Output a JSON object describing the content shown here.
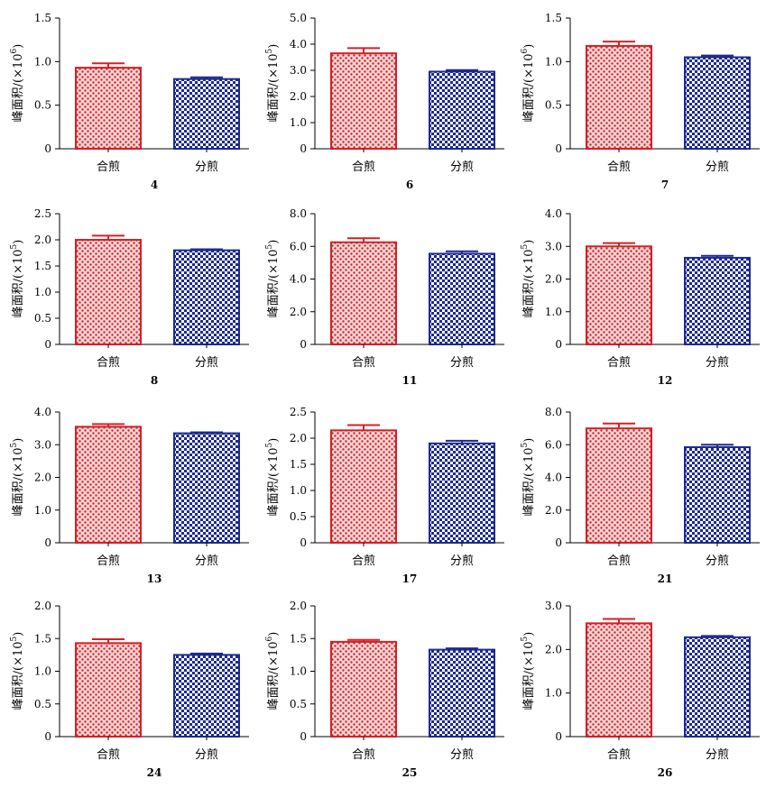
{
  "pattern_colors": {
    "combined": "#d42026",
    "separate": "#1c2a8e"
  },
  "ylabel_prefix": "峰面积/(×10",
  "ylabel_suffix": ")",
  "chart_data": [
    {
      "type": "bar",
      "compound": "4",
      "exponent": "6",
      "categories": [
        "合煎",
        "分煎"
      ],
      "values": [
        0.93,
        0.8
      ],
      "errors": [
        0.05,
        0.02
      ],
      "ylim": [
        0,
        1.5
      ],
      "yticks": [
        "0",
        "0.5",
        "1.0",
        "1.5"
      ]
    },
    {
      "type": "bar",
      "compound": "6",
      "exponent": "5",
      "categories": [
        "合煎",
        "分煎"
      ],
      "values": [
        3.65,
        2.95
      ],
      "errors": [
        0.2,
        0.06
      ],
      "ylim": [
        0,
        5.0
      ],
      "yticks": [
        "0",
        "1.0",
        "2.0",
        "3.0",
        "4.0",
        "5.0"
      ]
    },
    {
      "type": "bar",
      "compound": "7",
      "exponent": "6",
      "categories": [
        "合煎",
        "分煎"
      ],
      "values": [
        1.18,
        1.05
      ],
      "errors": [
        0.05,
        0.02
      ],
      "ylim": [
        0,
        1.5
      ],
      "yticks": [
        "0",
        "0.5",
        "1.0",
        "1.5"
      ]
    },
    {
      "type": "bar",
      "compound": "8",
      "exponent": "5",
      "categories": [
        "合煎",
        "分煎"
      ],
      "values": [
        2.0,
        1.8
      ],
      "errors": [
        0.08,
        0.02
      ],
      "ylim": [
        0,
        2.5
      ],
      "yticks": [
        "0",
        "0.5",
        "1.0",
        "1.5",
        "2.0",
        "2.5"
      ]
    },
    {
      "type": "bar",
      "compound": "11",
      "exponent": "5",
      "categories": [
        "合煎",
        "分煎"
      ],
      "values": [
        6.25,
        5.55
      ],
      "errors": [
        0.25,
        0.15
      ],
      "ylim": [
        0,
        8.0
      ],
      "yticks": [
        "0",
        "2.0",
        "4.0",
        "6.0",
        "8.0"
      ]
    },
    {
      "type": "bar",
      "compound": "12",
      "exponent": "5",
      "categories": [
        "合煎",
        "分煎"
      ],
      "values": [
        3.0,
        2.65
      ],
      "errors": [
        0.1,
        0.06
      ],
      "ylim": [
        0,
        4.0
      ],
      "yticks": [
        "0",
        "1.0",
        "2.0",
        "3.0",
        "4.0"
      ]
    },
    {
      "type": "bar",
      "compound": "13",
      "exponent": "5",
      "categories": [
        "合煎",
        "分煎"
      ],
      "values": [
        3.55,
        3.35
      ],
      "errors": [
        0.08,
        0.03
      ],
      "ylim": [
        0,
        4.0
      ],
      "yticks": [
        "0",
        "1.0",
        "2.0",
        "3.0",
        "4.0"
      ]
    },
    {
      "type": "bar",
      "compound": "17",
      "exponent": "5",
      "categories": [
        "合煎",
        "分煎"
      ],
      "values": [
        2.15,
        1.9
      ],
      "errors": [
        0.1,
        0.05
      ],
      "ylim": [
        0,
        2.5
      ],
      "yticks": [
        "0",
        "0.5",
        "1.0",
        "1.5",
        "2.0",
        "2.5"
      ]
    },
    {
      "type": "bar",
      "compound": "21",
      "exponent": "5",
      "categories": [
        "合煎",
        "分煎"
      ],
      "values": [
        7.0,
        5.85
      ],
      "errors": [
        0.3,
        0.15
      ],
      "ylim": [
        0,
        8.0
      ],
      "yticks": [
        "0",
        "2.0",
        "4.0",
        "6.0",
        "8.0"
      ]
    },
    {
      "type": "bar",
      "compound": "24",
      "exponent": "5",
      "categories": [
        "合煎",
        "分煎"
      ],
      "values": [
        1.43,
        1.25
      ],
      "errors": [
        0.06,
        0.02
      ],
      "ylim": [
        0,
        2.0
      ],
      "yticks": [
        "0",
        "0.5",
        "1.0",
        "1.5",
        "2.0"
      ]
    },
    {
      "type": "bar",
      "compound": "25",
      "exponent": "6",
      "categories": [
        "合煎",
        "分煎"
      ],
      "values": [
        1.45,
        1.33
      ],
      "errors": [
        0.03,
        0.02
      ],
      "ylim": [
        0,
        2.0
      ],
      "yticks": [
        "0",
        "0.5",
        "1.0",
        "1.5",
        "2.0"
      ]
    },
    {
      "type": "bar",
      "compound": "26",
      "exponent": "5",
      "categories": [
        "合煎",
        "分煎"
      ],
      "values": [
        2.6,
        2.28
      ],
      "errors": [
        0.1,
        0.03
      ],
      "ylim": [
        0,
        3.0
      ],
      "yticks": [
        "0",
        "1.0",
        "2.0",
        "3.0"
      ]
    }
  ]
}
